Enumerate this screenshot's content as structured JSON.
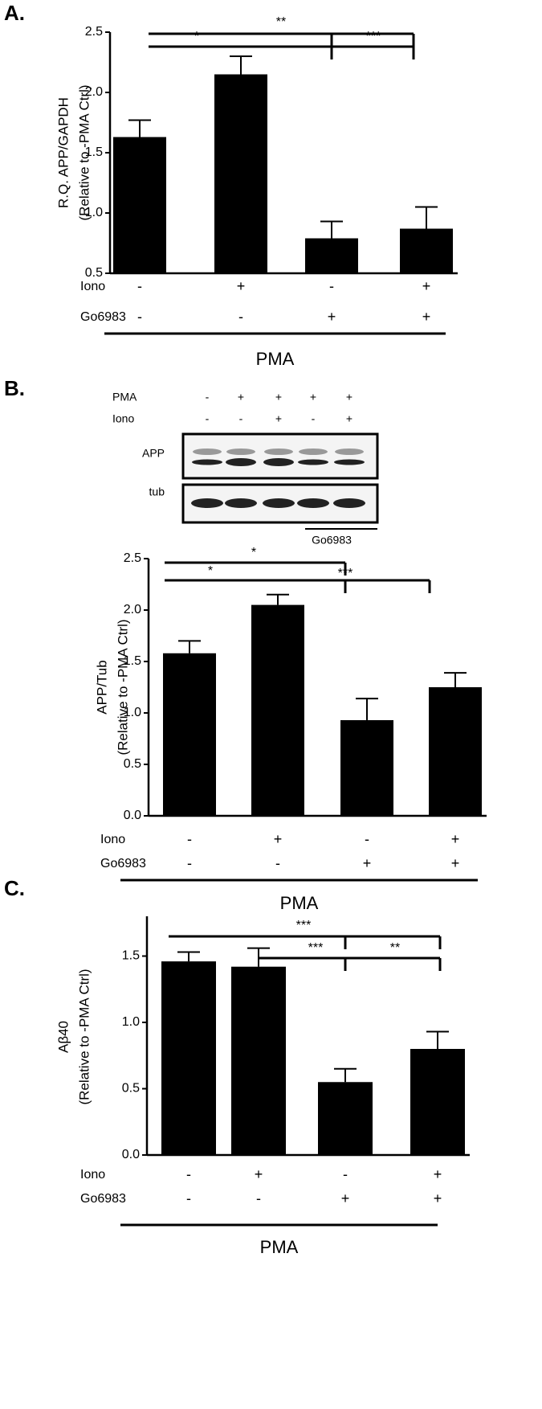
{
  "chart_data": [
    {
      "type": "bar",
      "panel_label": "A.",
      "y_label": [
        "R.Q. APP/GAPDH",
        "(Relative to -PMA Ctrl)"
      ],
      "values": [
        1.63,
        2.15,
        0.79,
        0.87
      ],
      "errors": [
        0.14,
        0.15,
        0.14,
        0.18
      ],
      "color": "#000000",
      "ylim": [
        0.5,
        2.5
      ],
      "yticks": [
        0.5,
        {
          "value": 1,
          "label": "1.0"
        },
        1.5,
        {
          "value": 2,
          "label": "2.0"
        },
        2.5
      ],
      "conditions": [
        {
          "name": "Iono",
          "values": [
            "-",
            "+",
            "-",
            "+"
          ]
        },
        {
          "name": "Go6983",
          "values": [
            "-",
            "-",
            "+",
            "+"
          ]
        }
      ],
      "group_label": "PMA",
      "annotations": [
        "**",
        "*",
        "***"
      ]
    },
    {
      "type": "bar",
      "panel_label": "B.",
      "y_label": [
        "APP/Tub",
        "(Relative to -PMA Ctrl)"
      ],
      "values": [
        1.58,
        2.05,
        0.93,
        1.25
      ],
      "errors": [
        0.12,
        0.1,
        0.21,
        0.14
      ],
      "color": "#000000",
      "ylim": [
        0,
        2.5
      ],
      "yticks": [
        {
          "value": 0,
          "label": "0.0"
        },
        0.5,
        {
          "value": 1,
          "label": "1.0"
        },
        1.5,
        {
          "value": 2,
          "label": "2.0"
        },
        2.5
      ],
      "conditions": [
        {
          "name": "Iono",
          "values": [
            "-",
            "+",
            "-",
            "+"
          ]
        },
        {
          "name": "Go6983",
          "values": [
            "-",
            "-",
            "+",
            "+"
          ]
        }
      ],
      "group_label": "PMA",
      "annotations": [
        "*",
        "*",
        "***"
      ],
      "blot": {
        "rows": [
          {
            "name": "PMA",
            "values": [
              "-",
              "+",
              "+",
              "+",
              "+"
            ]
          },
          {
            "name": "Iono",
            "values": [
              "-",
              "-",
              "+",
              "-",
              "+"
            ]
          }
        ],
        "bands": [
          "APP",
          "tub"
        ],
        "drug_label": "Go6983"
      }
    },
    {
      "type": "bar",
      "panel_label": "C.",
      "y_label": [
        "Aβ40",
        "(Relative to -PMA Ctrl)"
      ],
      "values": [
        1.46,
        1.42,
        0.55,
        0.8
      ],
      "errors": [
        0.07,
        0.14,
        0.1,
        0.13
      ],
      "color": "#000000",
      "ylim": [
        0,
        1.8
      ],
      "yticks": [
        {
          "value": 0,
          "label": "0.0"
        },
        0.5,
        {
          "value": 1,
          "label": "1.0"
        },
        1.5
      ],
      "conditions": [
        {
          "name": "Iono",
          "values": [
            "-",
            "+",
            "-",
            "+"
          ]
        },
        {
          "name": "Go6983",
          "values": [
            "-",
            "-",
            "+",
            "+"
          ]
        }
      ],
      "group_label": "PMA",
      "annotations": [
        "***",
        "***",
        "**"
      ]
    }
  ]
}
